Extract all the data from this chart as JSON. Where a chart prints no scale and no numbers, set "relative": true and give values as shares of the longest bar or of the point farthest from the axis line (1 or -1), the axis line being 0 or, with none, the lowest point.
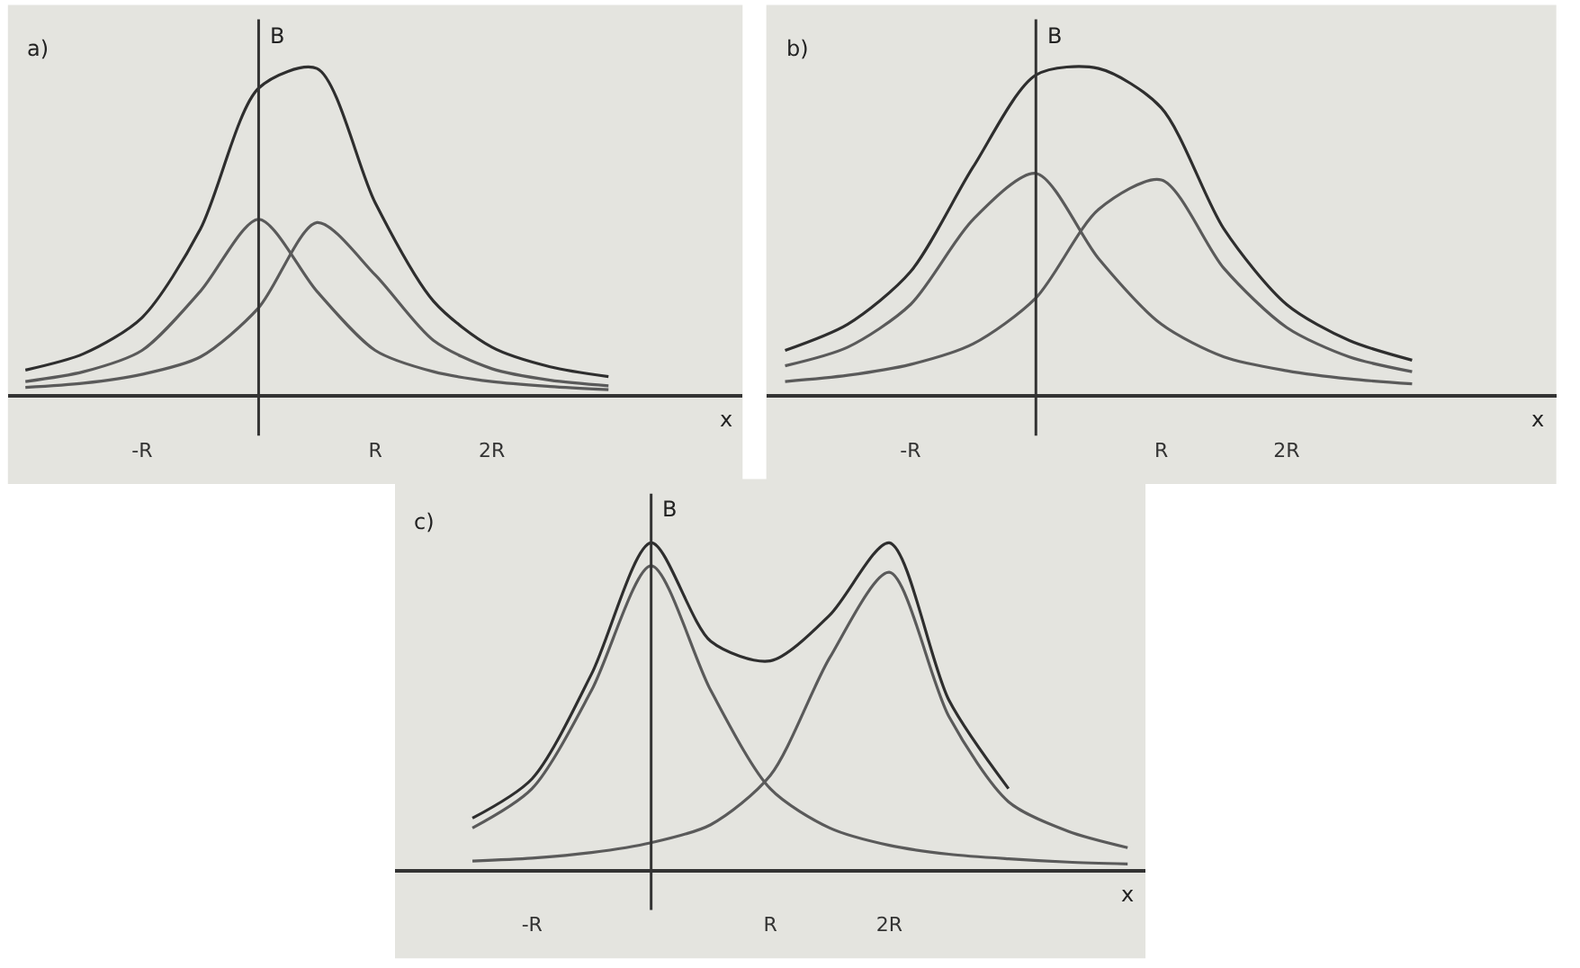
{
  "chart_data": [
    {
      "type": "line",
      "title": "a)",
      "xlabel": "x",
      "ylabel": "B",
      "relative": true,
      "categories": [
        null,
        null,
        "-R",
        null,
        null,
        null,
        "R",
        null,
        "2R",
        null,
        null,
        null,
        null
      ],
      "series": [
        {
          "color": "#2e2e2e",
          "values": [
            0.08,
            0.13,
            0.24,
            0.51,
            0.94,
            1.0,
            0.59,
            0.29,
            0.15,
            0.09,
            0.06,
            null,
            null
          ]
        },
        {
          "color": "#5a5a5a",
          "values": [
            0.045,
            0.075,
            0.14,
            0.32,
            0.54,
            0.32,
            0.14,
            0.075,
            0.045,
            0.03,
            0.02,
            null,
            null
          ]
        },
        {
          "color": "#5a5a5a",
          "values": [
            0.027,
            0.04,
            0.067,
            0.12,
            0.27,
            0.53,
            0.37,
            0.17,
            0.084,
            0.049,
            0.032,
            null,
            null
          ]
        }
      ]
    },
    {
      "type": "line",
      "title": "b)",
      "xlabel": "x",
      "ylabel": "B",
      "relative": true,
      "categories": [
        null,
        null,
        "-R",
        null,
        null,
        null,
        "R",
        null,
        "2R",
        null,
        null,
        null,
        null
      ],
      "series": [
        {
          "color": "#2e2e2e",
          "values": [
            0.14,
            0.22,
            0.38,
            0.7,
            0.98,
            1.0,
            0.88,
            0.51,
            0.28,
            0.17,
            0.11,
            null,
            null
          ]
        },
        {
          "color": "#5a5a5a",
          "values": [
            0.093,
            0.15,
            0.28,
            0.54,
            0.68,
            0.42,
            0.22,
            0.12,
            0.078,
            0.053,
            0.038,
            null,
            null
          ]
        },
        {
          "color": "#5a5a5a",
          "values": [
            0.045,
            0.064,
            0.097,
            0.16,
            0.3,
            0.57,
            0.66,
            0.39,
            0.21,
            0.12,
            0.075,
            null,
            null
          ]
        }
      ]
    },
    {
      "type": "line",
      "title": "c)",
      "xlabel": "x",
      "ylabel": "B",
      "relative": true,
      "categories": [
        null,
        null,
        "-R",
        null,
        null,
        null,
        "R",
        null,
        "2R",
        null,
        null,
        null,
        null
      ],
      "series": [
        {
          "color": "#2e2e2e",
          "values": [
            null,
            0.16,
            0.28,
            0.6,
            1.0,
            0.7,
            0.64,
            0.78,
            1.0,
            0.52,
            0.25,
            null,
            null
          ]
        },
        {
          "color": "#5a5a5a",
          "values": [
            null,
            0.13,
            0.25,
            0.55,
            0.93,
            0.55,
            0.25,
            0.13,
            0.077,
            0.05,
            0.036,
            0.026,
            0.02
          ]
        },
        {
          "color": "#5a5a5a",
          "values": [
            null,
            0.029,
            0.038,
            0.055,
            0.085,
            0.14,
            0.29,
            0.65,
            0.91,
            0.47,
            0.21,
            0.12,
            0.07
          ]
        }
      ]
    }
  ]
}
